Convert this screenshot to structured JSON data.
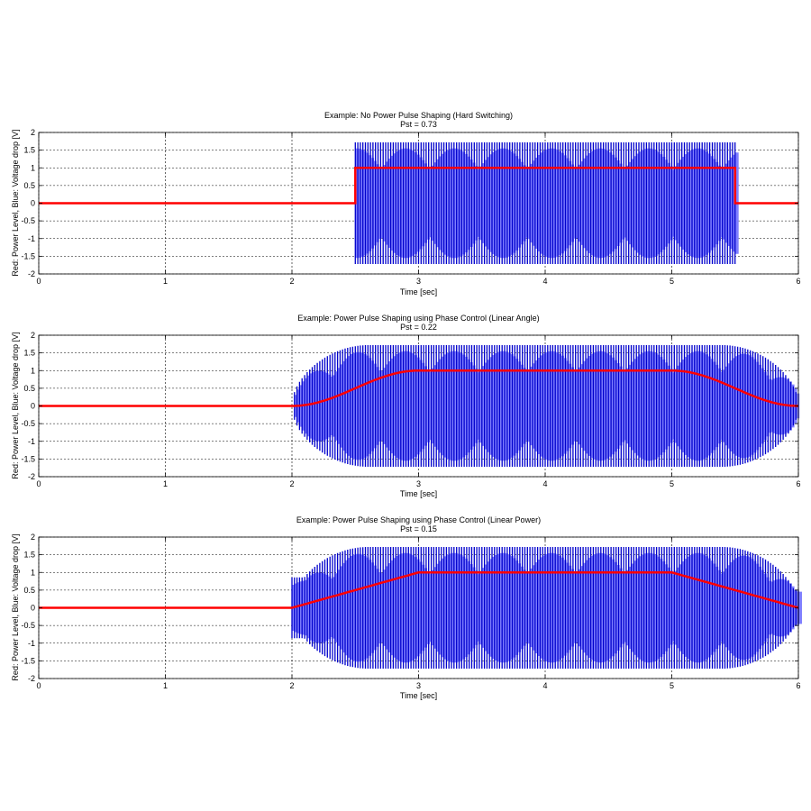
{
  "chart_data": [
    {
      "type": "line",
      "title": "Example: No Power Pulse Shaping (Hard Switching)",
      "subtitle": "Pst = 0.73",
      "xlabel": "Time [sec]",
      "ylabel": "Red: Power Level, Blue: Voltage drop [V]",
      "xlim": [
        0,
        6
      ],
      "ylim": [
        -2,
        2
      ],
      "xticks": [
        "0",
        "1",
        "2",
        "3",
        "4",
        "5",
        "6"
      ],
      "yticks": [
        "-2",
        "-1.5",
        "-1",
        "-0.5",
        "0",
        "0.5",
        "1",
        "1.5",
        "2"
      ],
      "grid": true,
      "series": [
        {
          "name": "Power Level",
          "color": "#ff0000",
          "shape": "hard",
          "x": [
            0,
            2.5,
            2.5,
            5.5,
            5.5,
            6
          ],
          "y": [
            0,
            0,
            1,
            1,
            0,
            0
          ]
        },
        {
          "name": "Voltage drop",
          "color": "#0000ff",
          "shape": "oscillation",
          "envelope": "hard",
          "amplitude": 1.72,
          "active_range": [
            2.5,
            5.5
          ]
        }
      ]
    },
    {
      "type": "line",
      "title": "Example: Power Pulse Shaping using Phase Control (Linear Angle)",
      "subtitle": "Pst = 0.22",
      "xlabel": "Time [sec]",
      "ylabel": "Red: Power Level, Blue: Voltage drop [V]",
      "xlim": [
        0,
        6
      ],
      "ylim": [
        -2,
        2
      ],
      "xticks": [
        "0",
        "1",
        "2",
        "3",
        "4",
        "5",
        "6"
      ],
      "yticks": [
        "-2",
        "-1.5",
        "-1",
        "-0.5",
        "0",
        "0.5",
        "1",
        "1.5",
        "2"
      ],
      "grid": true,
      "series": [
        {
          "name": "Power Level",
          "color": "#ff0000",
          "shape": "scurve",
          "x": [
            0,
            2,
            3,
            5,
            6
          ],
          "y": [
            0,
            0,
            1,
            1,
            0
          ]
        },
        {
          "name": "Voltage drop",
          "color": "#0000ff",
          "shape": "oscillation",
          "envelope": "angle",
          "amplitude": 1.72,
          "active_range": [
            2,
            6
          ]
        }
      ]
    },
    {
      "type": "line",
      "title": "Example: Power Pulse Shaping using Phase Control (Linear Power)",
      "subtitle": "Pst = 0.15",
      "xlabel": "Time [sec]",
      "ylabel": "Red: Power Level, Blue: Voltage drop [V]",
      "xlim": [
        0,
        6
      ],
      "ylim": [
        -2,
        2
      ],
      "xticks": [
        "0",
        "1",
        "2",
        "3",
        "4",
        "5",
        "6"
      ],
      "yticks": [
        "-2",
        "-1.5",
        "-1",
        "-0.5",
        "0",
        "0.5",
        "1",
        "1.5",
        "2"
      ],
      "grid": true,
      "series": [
        {
          "name": "Power Level",
          "color": "#ff0000",
          "shape": "linear",
          "x": [
            0,
            2,
            3,
            5,
            6
          ],
          "y": [
            0,
            0,
            1,
            1,
            0
          ]
        },
        {
          "name": "Voltage drop",
          "color": "#0000ff",
          "shape": "oscillation",
          "envelope": "power",
          "amplitude": 1.72,
          "active_range": [
            2,
            6
          ]
        }
      ]
    }
  ]
}
